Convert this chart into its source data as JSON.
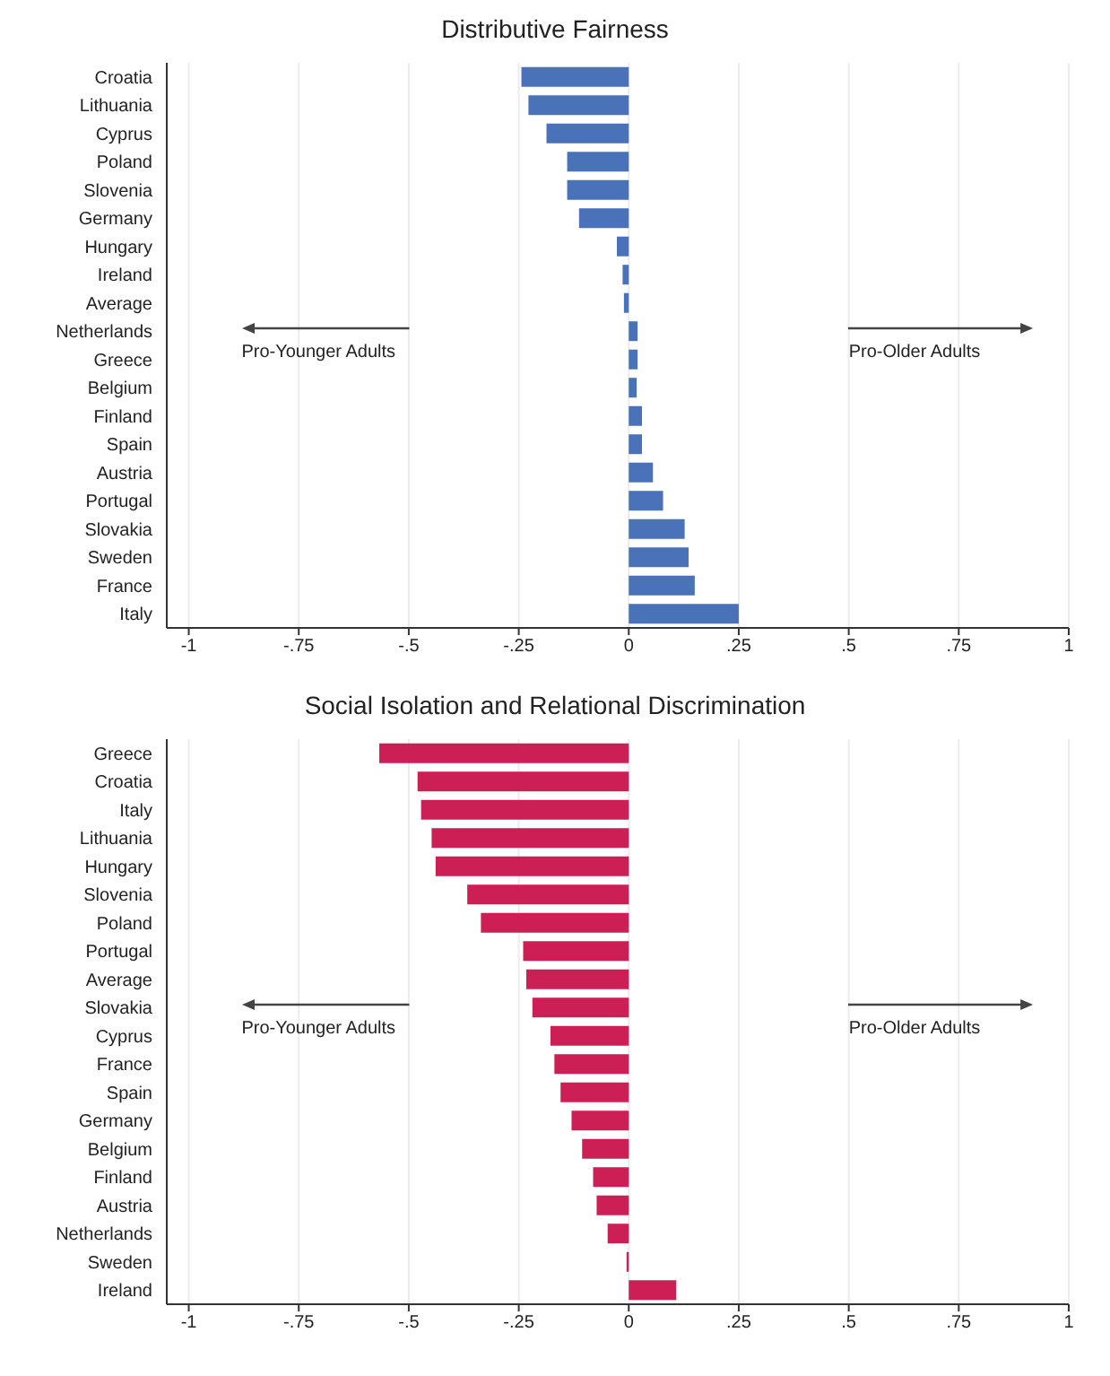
{
  "chart_data": [
    {
      "type": "bar",
      "orientation": "horizontal",
      "title": "Distributive Fairness",
      "categories": [
        "Croatia",
        "Lithuania",
        "Cyprus",
        "Poland",
        "Slovenia",
        "Germany",
        "Hungary",
        "Ireland",
        "Average",
        "Netherlands",
        "Greece",
        "Belgium",
        "Finland",
        "Spain",
        "Austria",
        "Portugal",
        "Slovakia",
        "Sweden",
        "France",
        "Italy"
      ],
      "values": [
        -0.244,
        -0.228,
        -0.187,
        -0.14,
        -0.14,
        -0.113,
        -0.027,
        -0.014,
        -0.011,
        0.02,
        0.02,
        0.018,
        0.03,
        0.03,
        0.055,
        0.078,
        0.127,
        0.136,
        0.15,
        0.25
      ],
      "color": "#4a72b8",
      "xlim": [
        -1.05,
        1
      ],
      "xticks": [
        -1,
        {
          "value": -0.75,
          "label": "-.75"
        },
        {
          "value": -0.5,
          "label": "-.5"
        },
        {
          "value": -0.25,
          "label": "-.25"
        },
        0,
        {
          "value": 0.25,
          "label": ".25"
        },
        {
          "value": 0.5,
          "label": ".5"
        },
        {
          "value": 0.75,
          "label": ".75"
        },
        1
      ],
      "grid": "x",
      "annotations": [
        "Pro-Younger Adults",
        "Pro-Older Adults"
      ]
    },
    {
      "type": "bar",
      "orientation": "horizontal",
      "title": "Social Isolation and Relational Discrimination",
      "categories": [
        "Greece",
        "Croatia",
        "Italy",
        "Lithuania",
        "Hungary",
        "Slovenia",
        "Poland",
        "Portugal",
        "Average",
        "Slovakia",
        "Cyprus",
        "France",
        "Spain",
        "Germany",
        "Belgium",
        "Finland",
        "Austria",
        "Netherlands",
        "Sweden",
        "Ireland"
      ],
      "values": [
        -0.567,
        -0.48,
        -0.472,
        -0.448,
        -0.439,
        -0.367,
        -0.336,
        -0.24,
        -0.233,
        -0.219,
        -0.178,
        -0.169,
        -0.155,
        -0.13,
        -0.106,
        -0.081,
        -0.073,
        -0.048,
        -0.005,
        0.108
      ],
      "color": "#cc1f55",
      "xlim": [
        -1.05,
        1
      ],
      "xticks": [
        -1,
        {
          "value": -0.75,
          "label": "-.75"
        },
        {
          "value": -0.5,
          "label": "-.5"
        },
        {
          "value": -0.25,
          "label": "-.25"
        },
        0,
        {
          "value": 0.25,
          "label": ".25"
        },
        {
          "value": 0.5,
          "label": ".5"
        },
        {
          "value": 0.75,
          "label": ".75"
        },
        1
      ],
      "grid": "x",
      "annotations": [
        "Pro-Younger Adults",
        "Pro-Older Adults"
      ]
    }
  ]
}
